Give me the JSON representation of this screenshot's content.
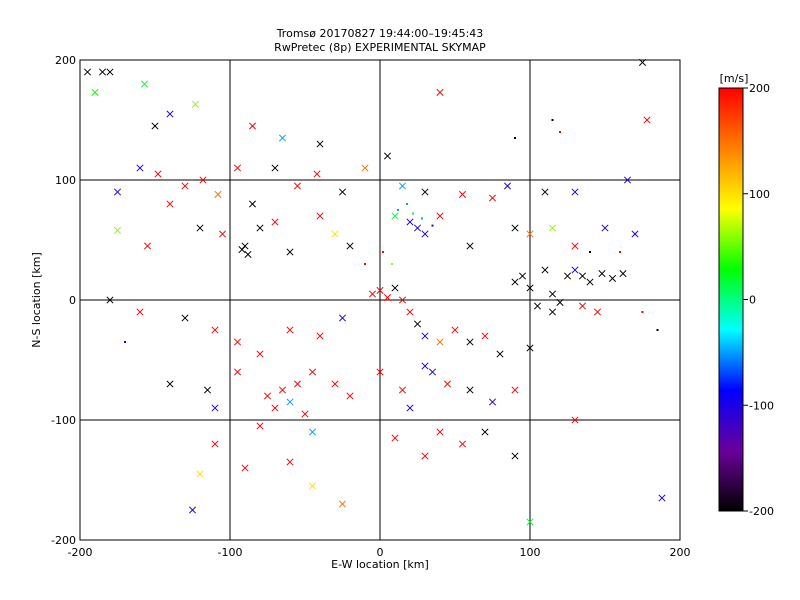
{
  "figure": {
    "title_line1": "Tromsø 20170827 19:44:00–19:45:43",
    "title_line2": "RwPretec (8p) EXPERIMENTAL SKYMAP"
  },
  "chart_data": {
    "type": "scatter",
    "title": "Tromsø 20170827 19:44:00–19:45:43 / RwPretec (8p) EXPERIMENTAL SKYMAP",
    "xlabel": "E-W location [km]",
    "ylabel": "N-S location [km]",
    "xlim": [
      -200,
      200
    ],
    "ylim": [
      -200,
      200
    ],
    "xticks": [
      -200,
      -100,
      0,
      100,
      200
    ],
    "yticks": [
      -200,
      -100,
      0,
      100,
      200
    ],
    "grid": true,
    "colorbar": {
      "label": "[m/s]",
      "min": -200,
      "max": 200,
      "ticks": [
        -200,
        -100,
        0,
        100,
        200
      ],
      "colormap": [
        "#000000",
        "#6a009a",
        "#0000ff",
        "#00ffff",
        "#00ff00",
        "#ffff00",
        "#ff8000",
        "#ff0000"
      ]
    },
    "marker_types": [
      "dot",
      "x"
    ],
    "points": [
      {
        "x": -195,
        "y": 190,
        "v": -200,
        "m": "x"
      },
      {
        "x": -185,
        "y": 190,
        "v": -200,
        "m": "x"
      },
      {
        "x": -180,
        "y": 190,
        "v": -200,
        "m": "x"
      },
      {
        "x": -190,
        "y": 173,
        "v": 30,
        "m": "x"
      },
      {
        "x": -157,
        "y": 180,
        "v": 20,
        "m": "x"
      },
      {
        "x": -123,
        "y": 163,
        "v": 60,
        "m": "x"
      },
      {
        "x": -140,
        "y": 155,
        "v": -100,
        "m": "x"
      },
      {
        "x": -150,
        "y": 145,
        "v": -200,
        "m": "x"
      },
      {
        "x": -85,
        "y": 145,
        "v": 200,
        "m": "x"
      },
      {
        "x": -65,
        "y": 135,
        "v": -50,
        "m": "x"
      },
      {
        "x": -40,
        "y": 130,
        "v": -200,
        "m": "x"
      },
      {
        "x": 40,
        "y": 173,
        "v": 200,
        "m": "x"
      },
      {
        "x": 120,
        "y": 140,
        "v": 200,
        "m": "dot"
      },
      {
        "x": 178,
        "y": 150,
        "v": 200,
        "m": "x"
      },
      {
        "x": 175,
        "y": 198,
        "v": -200,
        "m": "x"
      },
      {
        "x": 90,
        "y": 135,
        "v": -200,
        "m": "dot"
      },
      {
        "x": 115,
        "y": 150,
        "v": -200,
        "m": "dot"
      },
      {
        "x": -175,
        "y": 90,
        "v": -100,
        "m": "x"
      },
      {
        "x": -160,
        "y": 110,
        "v": -100,
        "m": "x"
      },
      {
        "x": -148,
        "y": 105,
        "v": 200,
        "m": "x"
      },
      {
        "x": -130,
        "y": 95,
        "v": 200,
        "m": "x"
      },
      {
        "x": -118,
        "y": 100,
        "v": 200,
        "m": "x"
      },
      {
        "x": -108,
        "y": 88,
        "v": 150,
        "m": "x"
      },
      {
        "x": -95,
        "y": 110,
        "v": 200,
        "m": "x"
      },
      {
        "x": -85,
        "y": 80,
        "v": -200,
        "m": "x"
      },
      {
        "x": -70,
        "y": 110,
        "v": -200,
        "m": "x"
      },
      {
        "x": -55,
        "y": 95,
        "v": 200,
        "m": "x"
      },
      {
        "x": -42,
        "y": 105,
        "v": 200,
        "m": "x"
      },
      {
        "x": -25,
        "y": 90,
        "v": -200,
        "m": "x"
      },
      {
        "x": -10,
        "y": 110,
        "v": 150,
        "m": "x"
      },
      {
        "x": 5,
        "y": 120,
        "v": -200,
        "m": "x"
      },
      {
        "x": 15,
        "y": 95,
        "v": -50,
        "m": "x"
      },
      {
        "x": 30,
        "y": 90,
        "v": -200,
        "m": "x"
      },
      {
        "x": 55,
        "y": 88,
        "v": 200,
        "m": "x"
      },
      {
        "x": 75,
        "y": 85,
        "v": 200,
        "m": "x"
      },
      {
        "x": 85,
        "y": 95,
        "v": -100,
        "m": "x"
      },
      {
        "x": 110,
        "y": 90,
        "v": -200,
        "m": "x"
      },
      {
        "x": 130,
        "y": 90,
        "v": -100,
        "m": "x"
      },
      {
        "x": 165,
        "y": 100,
        "v": -100,
        "m": "x"
      },
      {
        "x": -140,
        "y": 80,
        "v": 200,
        "m": "x"
      },
      {
        "x": -155,
        "y": 45,
        "v": 200,
        "m": "x"
      },
      {
        "x": -175,
        "y": 58,
        "v": 60,
        "m": "x"
      },
      {
        "x": -120,
        "y": 60,
        "v": -200,
        "m": "x"
      },
      {
        "x": -105,
        "y": 55,
        "v": 200,
        "m": "x"
      },
      {
        "x": -90,
        "y": 45,
        "v": -200,
        "m": "x"
      },
      {
        "x": -88,
        "y": 38,
        "v": -200,
        "m": "x"
      },
      {
        "x": -92,
        "y": 42,
        "v": -200,
        "m": "x"
      },
      {
        "x": -80,
        "y": 60,
        "v": -200,
        "m": "x"
      },
      {
        "x": -70,
        "y": 65,
        "v": 200,
        "m": "x"
      },
      {
        "x": -60,
        "y": 40,
        "v": -200,
        "m": "x"
      },
      {
        "x": -40,
        "y": 70,
        "v": 200,
        "m": "x"
      },
      {
        "x": -30,
        "y": 55,
        "v": 100,
        "m": "x"
      },
      {
        "x": -20,
        "y": 45,
        "v": -200,
        "m": "x"
      },
      {
        "x": 10,
        "y": 70,
        "v": 20,
        "m": "x"
      },
      {
        "x": 20,
        "y": 65,
        "v": -100,
        "m": "x"
      },
      {
        "x": 25,
        "y": 60,
        "v": -100,
        "m": "x"
      },
      {
        "x": 30,
        "y": 55,
        "v": -100,
        "m": "x"
      },
      {
        "x": 40,
        "y": 70,
        "v": 200,
        "m": "x"
      },
      {
        "x": 60,
        "y": 45,
        "v": -200,
        "m": "x"
      },
      {
        "x": 90,
        "y": 60,
        "v": -200,
        "m": "x"
      },
      {
        "x": 100,
        "y": 55,
        "v": 150,
        "m": "x"
      },
      {
        "x": 115,
        "y": 60,
        "v": 60,
        "m": "x"
      },
      {
        "x": 130,
        "y": 45,
        "v": 200,
        "m": "x"
      },
      {
        "x": 150,
        "y": 60,
        "v": -100,
        "m": "x"
      },
      {
        "x": 170,
        "y": 55,
        "v": -100,
        "m": "x"
      },
      {
        "x": 90,
        "y": 15,
        "v": -200,
        "m": "x"
      },
      {
        "x": 95,
        "y": 20,
        "v": -200,
        "m": "x"
      },
      {
        "x": 100,
        "y": 10,
        "v": -200,
        "m": "x"
      },
      {
        "x": 110,
        "y": 25,
        "v": -200,
        "m": "x"
      },
      {
        "x": 115,
        "y": 5,
        "v": -200,
        "m": "x"
      },
      {
        "x": 125,
        "y": 20,
        "v": -200,
        "m": "x"
      },
      {
        "x": 130,
        "y": 25,
        "v": -100,
        "m": "x"
      },
      {
        "x": 135,
        "y": 20,
        "v": -200,
        "m": "x"
      },
      {
        "x": 140,
        "y": 15,
        "v": -200,
        "m": "x"
      },
      {
        "x": 148,
        "y": 22,
        "v": -200,
        "m": "x"
      },
      {
        "x": 155,
        "y": 18,
        "v": -200,
        "m": "x"
      },
      {
        "x": 162,
        "y": 22,
        "v": -200,
        "m": "x"
      },
      {
        "x": 105,
        "y": -5,
        "v": -200,
        "m": "x"
      },
      {
        "x": 115,
        "y": -10,
        "v": -200,
        "m": "x"
      },
      {
        "x": 120,
        "y": -2,
        "v": -200,
        "m": "x"
      },
      {
        "x": 135,
        "y": -5,
        "v": 200,
        "m": "x"
      },
      {
        "x": 145,
        "y": -10,
        "v": 200,
        "m": "x"
      },
      {
        "x": -180,
        "y": 0,
        "v": -200,
        "m": "x"
      },
      {
        "x": -160,
        "y": -10,
        "v": 200,
        "m": "x"
      },
      {
        "x": -130,
        "y": -15,
        "v": -200,
        "m": "x"
      },
      {
        "x": -110,
        "y": -25,
        "v": 200,
        "m": "x"
      },
      {
        "x": -95,
        "y": -35,
        "v": 200,
        "m": "x"
      },
      {
        "x": -80,
        "y": -45,
        "v": 200,
        "m": "x"
      },
      {
        "x": -60,
        "y": -25,
        "v": 200,
        "m": "x"
      },
      {
        "x": -40,
        "y": -30,
        "v": 200,
        "m": "x"
      },
      {
        "x": -25,
        "y": -15,
        "v": -100,
        "m": "x"
      },
      {
        "x": -5,
        "y": 5,
        "v": 200,
        "m": "x"
      },
      {
        "x": 0,
        "y": 8,
        "v": 200,
        "m": "x"
      },
      {
        "x": 5,
        "y": 2,
        "v": 200,
        "m": "x"
      },
      {
        "x": 10,
        "y": 10,
        "v": -200,
        "m": "x"
      },
      {
        "x": 15,
        "y": 0,
        "v": 200,
        "m": "x"
      },
      {
        "x": 20,
        "y": -10,
        "v": 200,
        "m": "x"
      },
      {
        "x": 25,
        "y": -20,
        "v": -200,
        "m": "x"
      },
      {
        "x": 30,
        "y": -30,
        "v": -100,
        "m": "x"
      },
      {
        "x": 40,
        "y": -35,
        "v": 150,
        "m": "x"
      },
      {
        "x": 50,
        "y": -25,
        "v": 200,
        "m": "x"
      },
      {
        "x": 60,
        "y": -35,
        "v": -200,
        "m": "x"
      },
      {
        "x": 70,
        "y": -30,
        "v": 200,
        "m": "x"
      },
      {
        "x": 80,
        "y": -45,
        "v": -200,
        "m": "x"
      },
      {
        "x": 100,
        "y": -40,
        "v": -200,
        "m": "x"
      },
      {
        "x": -140,
        "y": -70,
        "v": -200,
        "m": "x"
      },
      {
        "x": -115,
        "y": -75,
        "v": -200,
        "m": "x"
      },
      {
        "x": -110,
        "y": -90,
        "v": -100,
        "m": "x"
      },
      {
        "x": -95,
        "y": -60,
        "v": 200,
        "m": "x"
      },
      {
        "x": -75,
        "y": -80,
        "v": 200,
        "m": "x"
      },
      {
        "x": -70,
        "y": -90,
        "v": 200,
        "m": "x"
      },
      {
        "x": -65,
        "y": -75,
        "v": 200,
        "m": "x"
      },
      {
        "x": -60,
        "y": -85,
        "v": -50,
        "m": "x"
      },
      {
        "x": -55,
        "y": -70,
        "v": 200,
        "m": "x"
      },
      {
        "x": -50,
        "y": -95,
        "v": 200,
        "m": "x"
      },
      {
        "x": -45,
        "y": -60,
        "v": 200,
        "m": "x"
      },
      {
        "x": -30,
        "y": -70,
        "v": 200,
        "m": "x"
      },
      {
        "x": -20,
        "y": -80,
        "v": 200,
        "m": "x"
      },
      {
        "x": 0,
        "y": -60,
        "v": 200,
        "m": "x"
      },
      {
        "x": 15,
        "y": -75,
        "v": 200,
        "m": "x"
      },
      {
        "x": 20,
        "y": -90,
        "v": -100,
        "m": "x"
      },
      {
        "x": 30,
        "y": -55,
        "v": -100,
        "m": "x"
      },
      {
        "x": 35,
        "y": -60,
        "v": -100,
        "m": "x"
      },
      {
        "x": 45,
        "y": -70,
        "v": 200,
        "m": "x"
      },
      {
        "x": 60,
        "y": -75,
        "v": -200,
        "m": "x"
      },
      {
        "x": 75,
        "y": -85,
        "v": -100,
        "m": "x"
      },
      {
        "x": 90,
        "y": -75,
        "v": 200,
        "m": "x"
      },
      {
        "x": -120,
        "y": -145,
        "v": 100,
        "m": "x"
      },
      {
        "x": -125,
        "y": -175,
        "v": -100,
        "m": "x"
      },
      {
        "x": -90,
        "y": -140,
        "v": 200,
        "m": "x"
      },
      {
        "x": -60,
        "y": -135,
        "v": 200,
        "m": "x"
      },
      {
        "x": -45,
        "y": -155,
        "v": 100,
        "m": "x"
      },
      {
        "x": -25,
        "y": -170,
        "v": 150,
        "m": "x"
      },
      {
        "x": 30,
        "y": -130,
        "v": 200,
        "m": "x"
      },
      {
        "x": 55,
        "y": -120,
        "v": 200,
        "m": "x"
      },
      {
        "x": 90,
        "y": -130,
        "v": -200,
        "m": "x"
      },
      {
        "x": 100,
        "y": -185,
        "v": 20,
        "m": "x"
      },
      {
        "x": 130,
        "y": -100,
        "v": 200,
        "m": "x"
      },
      {
        "x": 188,
        "y": -165,
        "v": -100,
        "m": "x"
      },
      {
        "x": -110,
        "y": -120,
        "v": 200,
        "m": "x"
      },
      {
        "x": -80,
        "y": -105,
        "v": 200,
        "m": "x"
      },
      {
        "x": -45,
        "y": -110,
        "v": -50,
        "m": "x"
      },
      {
        "x": 10,
        "y": -115,
        "v": 200,
        "m": "x"
      },
      {
        "x": 40,
        "y": -110,
        "v": 200,
        "m": "x"
      },
      {
        "x": 70,
        "y": -110,
        "v": -200,
        "m": "x"
      },
      {
        "x": -10,
        "y": 30,
        "v": 200,
        "m": "dot"
      },
      {
        "x": 2,
        "y": 40,
        "v": 200,
        "m": "dot"
      },
      {
        "x": 8,
        "y": 30,
        "v": 60,
        "m": "dot"
      },
      {
        "x": 12,
        "y": 75,
        "v": -50,
        "m": "dot"
      },
      {
        "x": 18,
        "y": 80,
        "v": -50,
        "m": "dot"
      },
      {
        "x": 22,
        "y": 72,
        "v": 20,
        "m": "dot"
      },
      {
        "x": 28,
        "y": 68,
        "v": -50,
        "m": "dot"
      },
      {
        "x": 35,
        "y": 62,
        "v": -100,
        "m": "dot"
      },
      {
        "x": -170,
        "y": -35,
        "v": -100,
        "m": "dot"
      },
      {
        "x": 140,
        "y": 40,
        "v": -200,
        "m": "dot"
      },
      {
        "x": 160,
        "y": 40,
        "v": 200,
        "m": "dot"
      },
      {
        "x": 175,
        "y": -10,
        "v": 200,
        "m": "dot"
      },
      {
        "x": 185,
        "y": -25,
        "v": -200,
        "m": "dot"
      }
    ]
  }
}
